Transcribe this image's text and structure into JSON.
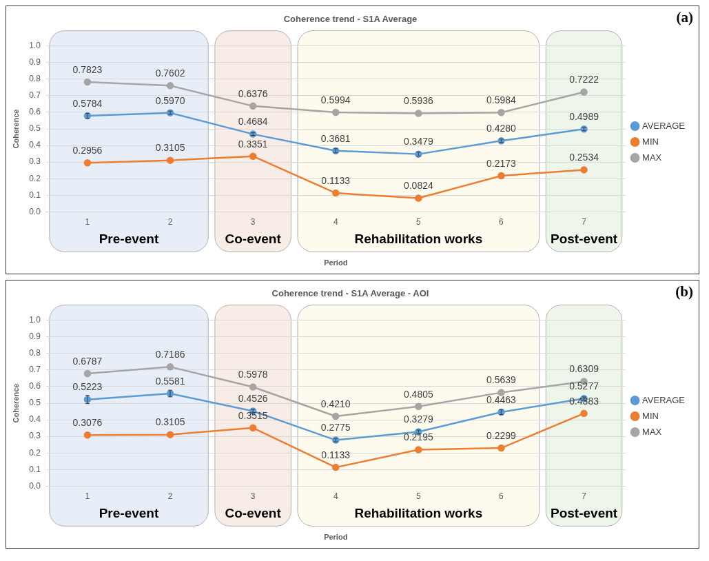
{
  "chart_data": [
    {
      "type": "line",
      "title": "Coherence trend - S1A Average",
      "xlabel": "Period",
      "ylabel": "Coherence",
      "annotations": [
        "(a)"
      ],
      "categories": [
        "1",
        "2",
        "3",
        "4",
        "5",
        "6",
        "7"
      ],
      "series": [
        {
          "name": "AVERAGE",
          "color": "#5b9bd5",
          "values": [
            0.5784,
            0.597,
            0.4684,
            0.3681,
            0.3479,
            0.428,
            0.4989
          ],
          "value_labels": [
            "0.5784",
            "0.5970",
            "0.4684",
            "0.3681",
            "0.3479",
            "0.4280",
            "0.4989"
          ],
          "errors": [
            0.015,
            0.01,
            0.008,
            0.012,
            0.012,
            0.01,
            0.01
          ]
        },
        {
          "name": "MIN",
          "color": "#ed7d31",
          "values": [
            0.2956,
            0.3105,
            0.3351,
            0.1133,
            0.0824,
            0.2173,
            0.2534
          ],
          "value_labels": [
            "0.2956",
            "0.3105",
            "0.3351",
            "0.1133",
            "0.0824",
            "0.2173",
            "0.2534"
          ]
        },
        {
          "name": "MAX",
          "color": "#a5a5a5",
          "values": [
            0.7823,
            0.7602,
            0.6376,
            0.5994,
            0.5936,
            0.5984,
            0.7222
          ],
          "value_labels": [
            "0.7823",
            "0.7602",
            "0.6376",
            "0.5994",
            "0.5936",
            "0.5984",
            "0.7222"
          ]
        }
      ],
      "ylim": [
        0,
        1
      ],
      "yticks": [
        {
          "value": 0,
          "label": "0.0"
        },
        {
          "value": 0.1,
          "label": "0.1"
        },
        {
          "value": 0.2,
          "label": "0.2"
        },
        {
          "value": 0.3,
          "label": "0.3"
        },
        {
          "value": 0.4,
          "label": "0.4"
        },
        {
          "value": 0.5,
          "label": "0.5"
        },
        {
          "value": 0.6,
          "label": "0.6"
        },
        {
          "value": 0.7,
          "label": "0.7"
        },
        {
          "value": 0.8,
          "label": "0.8"
        },
        {
          "value": 0.9,
          "label": "0.9"
        },
        {
          "value": 1,
          "label": "1.0"
        }
      ],
      "grid": "y",
      "legend": "right",
      "marker": "circle",
      "line_style": "solid",
      "bands": [
        {
          "axis": "x",
          "from": "1",
          "to": "2",
          "label": "Pre-event",
          "color": "#e8eef8"
        },
        {
          "axis": "x",
          "from": "3",
          "to": "3",
          "label": "Co-event",
          "color": "#f8ece6"
        },
        {
          "axis": "x",
          "from": "4",
          "to": "6",
          "label": "Rehabilitation works",
          "color": "#fefbee"
        },
        {
          "axis": "x",
          "from": "7",
          "to": "7",
          "label": "Post-event",
          "color": "#eef5ea"
        }
      ]
    },
    {
      "type": "line",
      "title": "Coherence trend - S1A Average - AOI",
      "xlabel": "Period",
      "ylabel": "Coherence",
      "annotations": [
        "(b)"
      ],
      "categories": [
        "1",
        "2",
        "3",
        "4",
        "5",
        "6",
        "7"
      ],
      "series": [
        {
          "name": "AVERAGE",
          "color": "#5b9bd5",
          "values": [
            0.5223,
            0.5581,
            0.4526,
            0.2775,
            0.3279,
            0.4463,
            0.5277
          ],
          "value_labels": [
            "0.5223",
            "0.5581",
            "0.4526",
            "0.2775",
            "0.3279",
            "0.4463",
            "0.5277"
          ],
          "errors": [
            0.025,
            0.02,
            0.01,
            0.01,
            0.01,
            0.015,
            0.01
          ]
        },
        {
          "name": "MIN",
          "color": "#ed7d31",
          "values": [
            0.3076,
            0.3105,
            0.3515,
            0.1133,
            0.2195,
            0.2299,
            0.4383
          ],
          "value_labels": [
            "0.3076",
            "0.3105",
            "0.3515",
            "0.1133",
            "0.2195",
            "0.2299",
            "0.4383"
          ]
        },
        {
          "name": "MAX",
          "color": "#a5a5a5",
          "values": [
            0.6787,
            0.7186,
            0.5978,
            0.421,
            0.4805,
            0.5639,
            0.6309
          ],
          "value_labels": [
            "0.6787",
            "0.7186",
            "0.5978",
            "0.4210",
            "0.4805",
            "0.5639",
            "0.6309"
          ]
        }
      ],
      "ylim": [
        0,
        1
      ],
      "yticks": [
        {
          "value": 0,
          "label": "0.0"
        },
        {
          "value": 0.1,
          "label": "0.1"
        },
        {
          "value": 0.2,
          "label": "0.2"
        },
        {
          "value": 0.3,
          "label": "0.3"
        },
        {
          "value": 0.4,
          "label": "0.4"
        },
        {
          "value": 0.5,
          "label": "0.5"
        },
        {
          "value": 0.6,
          "label": "0.6"
        },
        {
          "value": 0.7,
          "label": "0.7"
        },
        {
          "value": 0.8,
          "label": "0.8"
        },
        {
          "value": 0.9,
          "label": "0.9"
        },
        {
          "value": 1,
          "label": "1.0"
        }
      ],
      "grid": "y",
      "legend": "right",
      "marker": "circle",
      "line_style": "solid",
      "bands": [
        {
          "axis": "x",
          "from": "1",
          "to": "2",
          "label": "Pre-event",
          "color": "#e8eef8"
        },
        {
          "axis": "x",
          "from": "3",
          "to": "3",
          "label": "Co-event",
          "color": "#f8ece6"
        },
        {
          "axis": "x",
          "from": "4",
          "to": "6",
          "label": "Rehabilitation works",
          "color": "#fefbee"
        },
        {
          "axis": "x",
          "from": "7",
          "to": "7",
          "label": "Post-event",
          "color": "#eef5ea"
        }
      ]
    }
  ]
}
